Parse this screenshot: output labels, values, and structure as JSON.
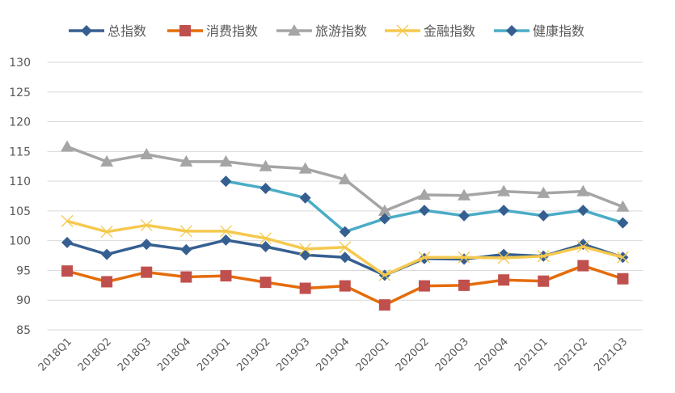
{
  "chart_data": {
    "type": "line",
    "title": "",
    "xlabel": "",
    "ylabel": "",
    "ylim": [
      85,
      130
    ],
    "yticks": [
      85,
      90,
      95,
      100,
      105,
      110,
      115,
      120,
      125,
      130
    ],
    "grid": true,
    "legend_position": "top",
    "categories": [
      "2018Q1",
      "2018Q2",
      "2018Q3",
      "2018Q4",
      "2019Q1",
      "2019Q2",
      "2019Q3",
      "2019Q4",
      "2020Q1",
      "2020Q2",
      "2020Q3",
      "2020Q4",
      "2021Q1",
      "2021Q2",
      "2021Q3"
    ],
    "series": [
      {
        "name": "总指数",
        "color": "#365f91",
        "line_color": "#365f91",
        "marker": "diamond",
        "marker_color": "#365f91",
        "values": [
          99.7,
          97.7,
          99.4,
          98.5,
          100.1,
          99.0,
          97.6,
          97.2,
          94.2,
          97.0,
          96.9,
          97.7,
          97.4,
          99.4,
          97.2
        ]
      },
      {
        "name": "消费指数",
        "color": "#e46c0a",
        "line_color": "#e46c0a",
        "marker": "square",
        "marker_color": "#c0504d",
        "values": [
          94.9,
          93.1,
          94.7,
          93.9,
          94.1,
          93.0,
          92.0,
          92.4,
          89.2,
          92.4,
          92.5,
          93.4,
          93.2,
          95.8,
          93.6
        ]
      },
      {
        "name": "旅游指数",
        "color": "#a5a5a5",
        "line_color": "#a5a5a5",
        "marker": "triangle",
        "marker_color": "#a5a5a5",
        "values": [
          115.8,
          113.3,
          114.5,
          113.3,
          113.3,
          112.5,
          112.1,
          110.3,
          105.0,
          107.7,
          107.6,
          108.3,
          108.0,
          108.3,
          105.7
        ]
      },
      {
        "name": "金融指数",
        "color": "#f5c94f",
        "line_color": "#f5c94f",
        "marker": "x",
        "marker_color": "#f5c94f",
        "values": [
          103.3,
          101.5,
          102.6,
          101.6,
          101.6,
          100.4,
          98.6,
          98.9,
          94.2,
          97.2,
          97.2,
          97.1,
          97.4,
          99.0,
          97.2
        ]
      },
      {
        "name": "健康指数",
        "color": "#4bacc6",
        "line_color": "#4bacc6",
        "marker": "diamond",
        "marker_color": "#365f91",
        "values": [
          null,
          null,
          null,
          null,
          110.0,
          108.8,
          107.2,
          101.5,
          103.7,
          105.1,
          104.2,
          105.1,
          104.2,
          105.1,
          103.0
        ]
      }
    ]
  }
}
